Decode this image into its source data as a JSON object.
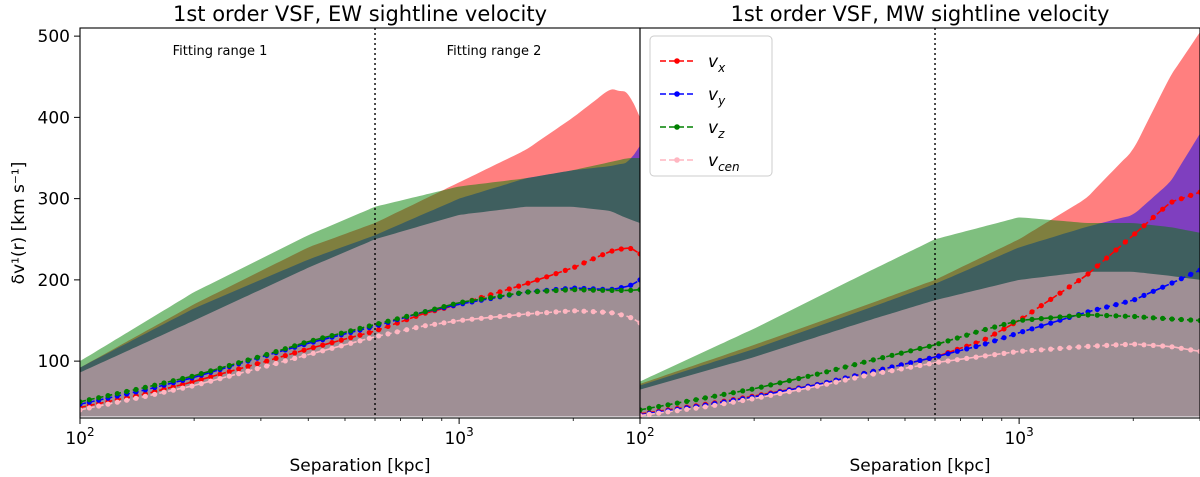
{
  "chart_data": [
    {
      "type": "line",
      "panel": "left",
      "title": "1st order VSF, EW sightline velocity",
      "xlabel": "Separation [kpc]",
      "ylabel": "δv¹(r) [km s⁻¹]",
      "xscale": "log",
      "xlim": [
        100,
        3000
      ],
      "ylim": [
        30,
        510
      ],
      "xticks": [
        {
          "value": 100,
          "label": "10",
          "exp": "2"
        },
        {
          "value": 1000,
          "label": "10",
          "exp": "3"
        }
      ],
      "yticks": [
        100,
        200,
        300,
        400,
        500
      ],
      "vlines": [
        600
      ],
      "annotations": [
        "Fitting range 1",
        "Fitting range 2"
      ],
      "bands": [
        {
          "name": "v_x spread",
          "color": "#ff0000",
          "opacity": 0.5,
          "x": [
            100,
            200,
            400,
            600,
            1000,
            1500,
            2000,
            2500,
            2800,
            3000
          ],
          "lower": [
            32,
            32,
            32,
            32,
            32,
            32,
            32,
            32,
            32,
            32
          ],
          "upper": [
            92,
            170,
            240,
            270,
            320,
            360,
            400,
            435,
            430,
            400
          ]
        },
        {
          "name": "v_y spread",
          "color": "#0000ff",
          "opacity": 0.5,
          "x": [
            100,
            200,
            400,
            600,
            1000,
            1500,
            2000,
            2500,
            2800,
            3000
          ],
          "lower": [
            32,
            32,
            32,
            32,
            32,
            32,
            32,
            32,
            32,
            32
          ],
          "upper": [
            92,
            165,
            225,
            255,
            300,
            325,
            335,
            340,
            345,
            365
          ]
        },
        {
          "name": "v_z spread",
          "color": "#008000",
          "opacity": 0.5,
          "x": [
            100,
            200,
            400,
            600,
            1000,
            1500,
            2000,
            2500,
            2800,
            3000
          ],
          "lower": [
            32,
            32,
            32,
            32,
            32,
            32,
            32,
            32,
            32,
            32
          ],
          "upper": [
            100,
            185,
            255,
            290,
            315,
            325,
            335,
            345,
            350,
            350
          ]
        },
        {
          "name": "v_cen spread",
          "color": "#ffc0cb",
          "opacity": 0.5,
          "x": [
            100,
            200,
            400,
            600,
            1000,
            1500,
            2000,
            2500,
            2800,
            3000
          ],
          "lower": [
            32,
            32,
            32,
            32,
            32,
            32,
            32,
            32,
            32,
            32
          ],
          "upper": [
            86,
            150,
            215,
            250,
            280,
            290,
            290,
            285,
            275,
            270
          ]
        }
      ],
      "series": [
        {
          "name": "v_x",
          "label": "v",
          "sub": "x",
          "color": "#ff0000",
          "x": [
            100,
            150,
            200,
            300,
            400,
            600,
            800,
            1000,
            1500,
            2000,
            2500,
            2800,
            3000
          ],
          "values": [
            43,
            60,
            75,
            98,
            115,
            137,
            158,
            170,
            195,
            215,
            235,
            240,
            232
          ]
        },
        {
          "name": "v_y",
          "label": "v",
          "sub": "y",
          "color": "#0000ff",
          "x": [
            100,
            150,
            200,
            300,
            400,
            600,
            800,
            1000,
            1500,
            2000,
            2500,
            2800,
            3000
          ],
          "values": [
            47,
            65,
            80,
            105,
            122,
            143,
            160,
            170,
            185,
            190,
            188,
            192,
            200
          ]
        },
        {
          "name": "v_z",
          "label": "v",
          "sub": "z",
          "color": "#008000",
          "x": [
            100,
            150,
            200,
            300,
            400,
            600,
            800,
            1000,
            1500,
            2000,
            2500,
            2800,
            3000
          ],
          "values": [
            50,
            68,
            82,
            106,
            124,
            145,
            160,
            172,
            185,
            188,
            187,
            187,
            188
          ]
        },
        {
          "name": "v_cen",
          "label": "v",
          "sub": "cen",
          "color": "#ffb6c1",
          "x": [
            100,
            150,
            200,
            300,
            400,
            600,
            800,
            1000,
            1500,
            2000,
            2500,
            2800,
            3000
          ],
          "values": [
            40,
            57,
            70,
            92,
            108,
            130,
            143,
            150,
            158,
            162,
            160,
            155,
            147
          ]
        }
      ]
    },
    {
      "type": "line",
      "panel": "right",
      "title": "1st order VSF, MW sightline velocity",
      "xlabel": "Separation [kpc]",
      "ylabel": "",
      "xscale": "log",
      "xlim": [
        100,
        3000
      ],
      "ylim": [
        30,
        510
      ],
      "xticks": [
        {
          "value": 100,
          "label": "10",
          "exp": "2"
        },
        {
          "value": 1000,
          "label": "10",
          "exp": "3"
        }
      ],
      "vlines": [
        600
      ],
      "legend_position": "top-left",
      "bands": [
        {
          "name": "v_x spread",
          "color": "#ff0000",
          "opacity": 0.5,
          "x": [
            100,
            200,
            400,
            600,
            1000,
            1500,
            2000,
            2500,
            3000
          ],
          "lower": [
            32,
            32,
            32,
            32,
            32,
            32,
            32,
            32,
            32
          ],
          "upper": [
            72,
            120,
            170,
            200,
            250,
            300,
            360,
            450,
            505
          ]
        },
        {
          "name": "v_y spread",
          "color": "#0000ff",
          "opacity": 0.5,
          "x": [
            100,
            200,
            400,
            600,
            1000,
            1500,
            2000,
            2500,
            3000
          ],
          "lower": [
            32,
            32,
            32,
            32,
            32,
            32,
            32,
            32,
            32
          ],
          "upper": [
            70,
            115,
            165,
            195,
            240,
            265,
            280,
            320,
            380
          ]
        },
        {
          "name": "v_z spread",
          "color": "#008000",
          "opacity": 0.5,
          "x": [
            100,
            200,
            400,
            600,
            1000,
            1500,
            2000,
            2500,
            3000
          ],
          "lower": [
            32,
            32,
            32,
            32,
            32,
            32,
            32,
            32,
            32
          ],
          "upper": [
            75,
            140,
            210,
            250,
            277,
            270,
            270,
            265,
            258
          ]
        },
        {
          "name": "v_cen spread",
          "color": "#ffc0cb",
          "opacity": 0.5,
          "x": [
            100,
            200,
            400,
            600,
            1000,
            1500,
            2000,
            2500,
            3000
          ],
          "lower": [
            32,
            32,
            32,
            32,
            32,
            32,
            32,
            32,
            32
          ],
          "upper": [
            65,
            105,
            150,
            175,
            200,
            210,
            210,
            205,
            200
          ]
        }
      ],
      "series": [
        {
          "name": "v_x",
          "label": "v",
          "sub": "x",
          "color": "#ff0000",
          "x": [
            100,
            150,
            200,
            300,
            400,
            600,
            800,
            1000,
            1500,
            2000,
            2500,
            3000
          ],
          "values": [
            35,
            47,
            57,
            72,
            86,
            105,
            125,
            150,
            205,
            255,
            295,
            308
          ]
        },
        {
          "name": "v_y",
          "label": "v",
          "sub": "y",
          "color": "#0000ff",
          "x": [
            100,
            150,
            200,
            300,
            400,
            600,
            800,
            1000,
            1500,
            2000,
            2500,
            3000
          ],
          "values": [
            34,
            46,
            56,
            72,
            86,
            105,
            120,
            135,
            160,
            175,
            195,
            212
          ]
        },
        {
          "name": "v_z",
          "label": "v",
          "sub": "z",
          "color": "#008000",
          "x": [
            100,
            150,
            200,
            300,
            400,
            600,
            800,
            1000,
            1500,
            2000,
            2500,
            3000
          ],
          "values": [
            40,
            55,
            66,
            85,
            100,
            120,
            138,
            150,
            157,
            155,
            152,
            150
          ]
        },
        {
          "name": "v_cen",
          "label": "v",
          "sub": "cen",
          "color": "#ffb6c1",
          "x": [
            100,
            150,
            200,
            300,
            400,
            600,
            800,
            1000,
            1500,
            2000,
            2500,
            3000
          ],
          "values": [
            33,
            44,
            54,
            70,
            83,
            98,
            106,
            112,
            118,
            121,
            118,
            112
          ]
        }
      ]
    }
  ]
}
